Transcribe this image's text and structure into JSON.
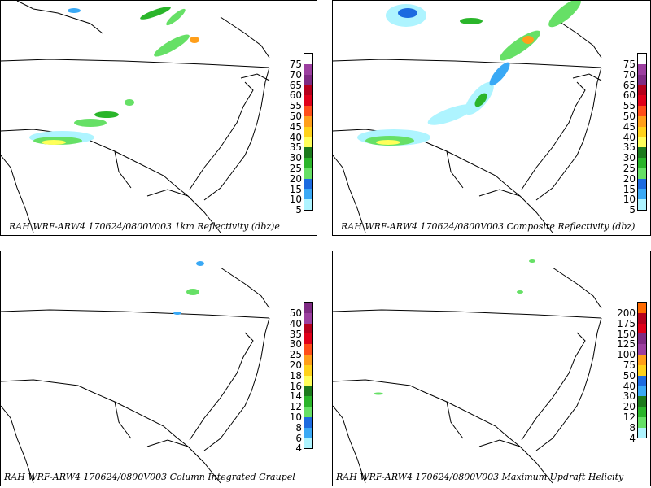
{
  "panels": [
    {
      "title": "RAH WRF-ARW4 170624/0800V003  1km Reflectivity (dbz)e",
      "scale": [
        "75",
        "70",
        "65",
        "60",
        "55",
        "50",
        "45",
        "40",
        "35",
        "30",
        "25",
        "20",
        "15",
        "10",
        "5"
      ],
      "colors": [
        "#ffffff",
        "#9c3fa0",
        "#7f2b84",
        "#b5001c",
        "#e0001a",
        "#ff4e1a",
        "#ff9f1a",
        "#ffd21a",
        "#ffff5a",
        "#1c7a1c",
        "#2ab52a",
        "#66e066",
        "#1c6be0",
        "#3aa9f5",
        "#aef4ff"
      ]
    },
    {
      "title": "RAH WRF-ARW4 170624/0800V003  Composite Reflectivity (dbz)",
      "scale": [
        "75",
        "70",
        "65",
        "60",
        "55",
        "50",
        "45",
        "40",
        "35",
        "30",
        "25",
        "20",
        "15",
        "10",
        "5"
      ],
      "colors": [
        "#ffffff",
        "#9c3fa0",
        "#7f2b84",
        "#b5001c",
        "#e0001a",
        "#ff4e1a",
        "#ff9f1a",
        "#ffd21a",
        "#ffff5a",
        "#1c7a1c",
        "#2ab52a",
        "#66e066",
        "#1c6be0",
        "#3aa9f5",
        "#aef4ff"
      ]
    },
    {
      "title": "RAH WRF-ARW4 170624/0800V003  Column Integrated Graupel",
      "scale": [
        "50",
        "40",
        "35",
        "30",
        "25",
        "20",
        "18",
        "16",
        "14",
        "12",
        "10",
        "8",
        "6",
        "4"
      ],
      "colors": [
        "#7f2b84",
        "#9c3fa0",
        "#b5001c",
        "#e0001a",
        "#ff4e1a",
        "#ff9f1a",
        "#ffd21a",
        "#ffff5a",
        "#1c7a1c",
        "#2ab52a",
        "#66e066",
        "#1c6be0",
        "#3aa9f5",
        "#aef4ff"
      ]
    },
    {
      "title": "RAH WRF-ARW4 170624/0800V003  Maximum Updraft Helicity",
      "scale": [
        "200",
        "175",
        "150",
        "125",
        "100",
        "75",
        "50",
        "40",
        "30",
        "20",
        "12",
        "8",
        "4"
      ],
      "colors": [
        "#ff6a00",
        "#b5001c",
        "#e0001a",
        "#7f2b84",
        "#9c3fa0",
        "#ff9f1a",
        "#ffd21a",
        "#1c6be0",
        "#3aa9f5",
        "#1c7a1c",
        "#2ab52a",
        "#66e066",
        "#aef4ff"
      ]
    }
  ]
}
